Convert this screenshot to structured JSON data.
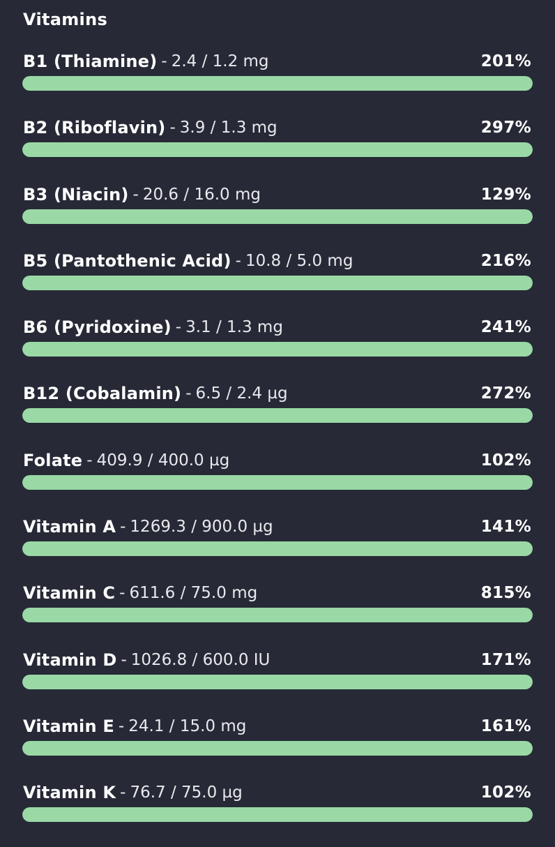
{
  "section": {
    "title": "Vitamins"
  },
  "colors": {
    "background": "#272a36",
    "bar_fill": "#9ad9a6",
    "text": "#ffffff"
  },
  "separator": "-",
  "vitamins": [
    {
      "name": "B1 (Thiamine)",
      "amount": "2.4 / 1.2 mg",
      "percent": "201%",
      "fill_fraction": 1.0
    },
    {
      "name": "B2 (Riboflavin)",
      "amount": "3.9 / 1.3 mg",
      "percent": "297%",
      "fill_fraction": 1.0
    },
    {
      "name": "B3 (Niacin)",
      "amount": "20.6 / 16.0 mg",
      "percent": "129%",
      "fill_fraction": 1.0
    },
    {
      "name": "B5 (Pantothenic Acid)",
      "amount": "10.8 / 5.0 mg",
      "percent": "216%",
      "fill_fraction": 1.0
    },
    {
      "name": "B6 (Pyridoxine)",
      "amount": "3.1 / 1.3 mg",
      "percent": "241%",
      "fill_fraction": 1.0
    },
    {
      "name": "B12 (Cobalamin)",
      "amount": "6.5 / 2.4 µg",
      "percent": "272%",
      "fill_fraction": 1.0
    },
    {
      "name": "Folate",
      "amount": "409.9 / 400.0 µg",
      "percent": "102%",
      "fill_fraction": 1.0
    },
    {
      "name": "Vitamin A",
      "amount": "1269.3 / 900.0 µg",
      "percent": "141%",
      "fill_fraction": 1.0
    },
    {
      "name": "Vitamin C",
      "amount": "611.6 / 75.0 mg",
      "percent": "815%",
      "fill_fraction": 1.0
    },
    {
      "name": "Vitamin D",
      "amount": "1026.8 / 600.0 IU",
      "percent": "171%",
      "fill_fraction": 1.0
    },
    {
      "name": "Vitamin E",
      "amount": "24.1 / 15.0 mg",
      "percent": "161%",
      "fill_fraction": 1.0
    },
    {
      "name": "Vitamin K",
      "amount": "76.7 / 75.0 µg",
      "percent": "102%",
      "fill_fraction": 1.0
    }
  ]
}
